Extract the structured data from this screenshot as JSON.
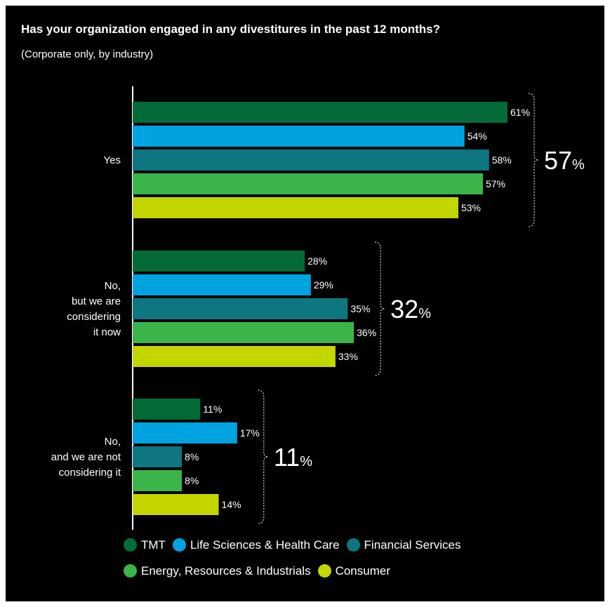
{
  "title": "Has your organization engaged in any divestitures in the past 12 months?",
  "subtitle": "(Corporate only, by industry)",
  "chart_data": {
    "type": "bar",
    "orientation": "horizontal",
    "categories": [
      [
        "Yes"
      ],
      [
        "No,",
        "but we are",
        "considering",
        "it now"
      ],
      [
        "No,",
        "and we are not",
        "considering it"
      ]
    ],
    "series": [
      {
        "name": "TMT",
        "color": "#046a38",
        "values": [
          61,
          28,
          11
        ]
      },
      {
        "name": "Life Sciences & Health Care",
        "color": "#00a3e0",
        "values": [
          54,
          29,
          17
        ]
      },
      {
        "name": "Financial Services",
        "color": "#0d7680",
        "values": [
          58,
          35,
          8
        ]
      },
      {
        "name": "Energy, Resources & Industrials",
        "color": "#3bb54a",
        "values": [
          57,
          36,
          8
        ]
      },
      {
        "name": "Consumer",
        "color": "#c4d600",
        "values": [
          53,
          33,
          14
        ]
      }
    ],
    "value_suffix": "%",
    "group_totals": [
      57,
      32,
      11
    ],
    "xlim": [
      0,
      61
    ],
    "grid": false,
    "legend_position": "bottom"
  }
}
